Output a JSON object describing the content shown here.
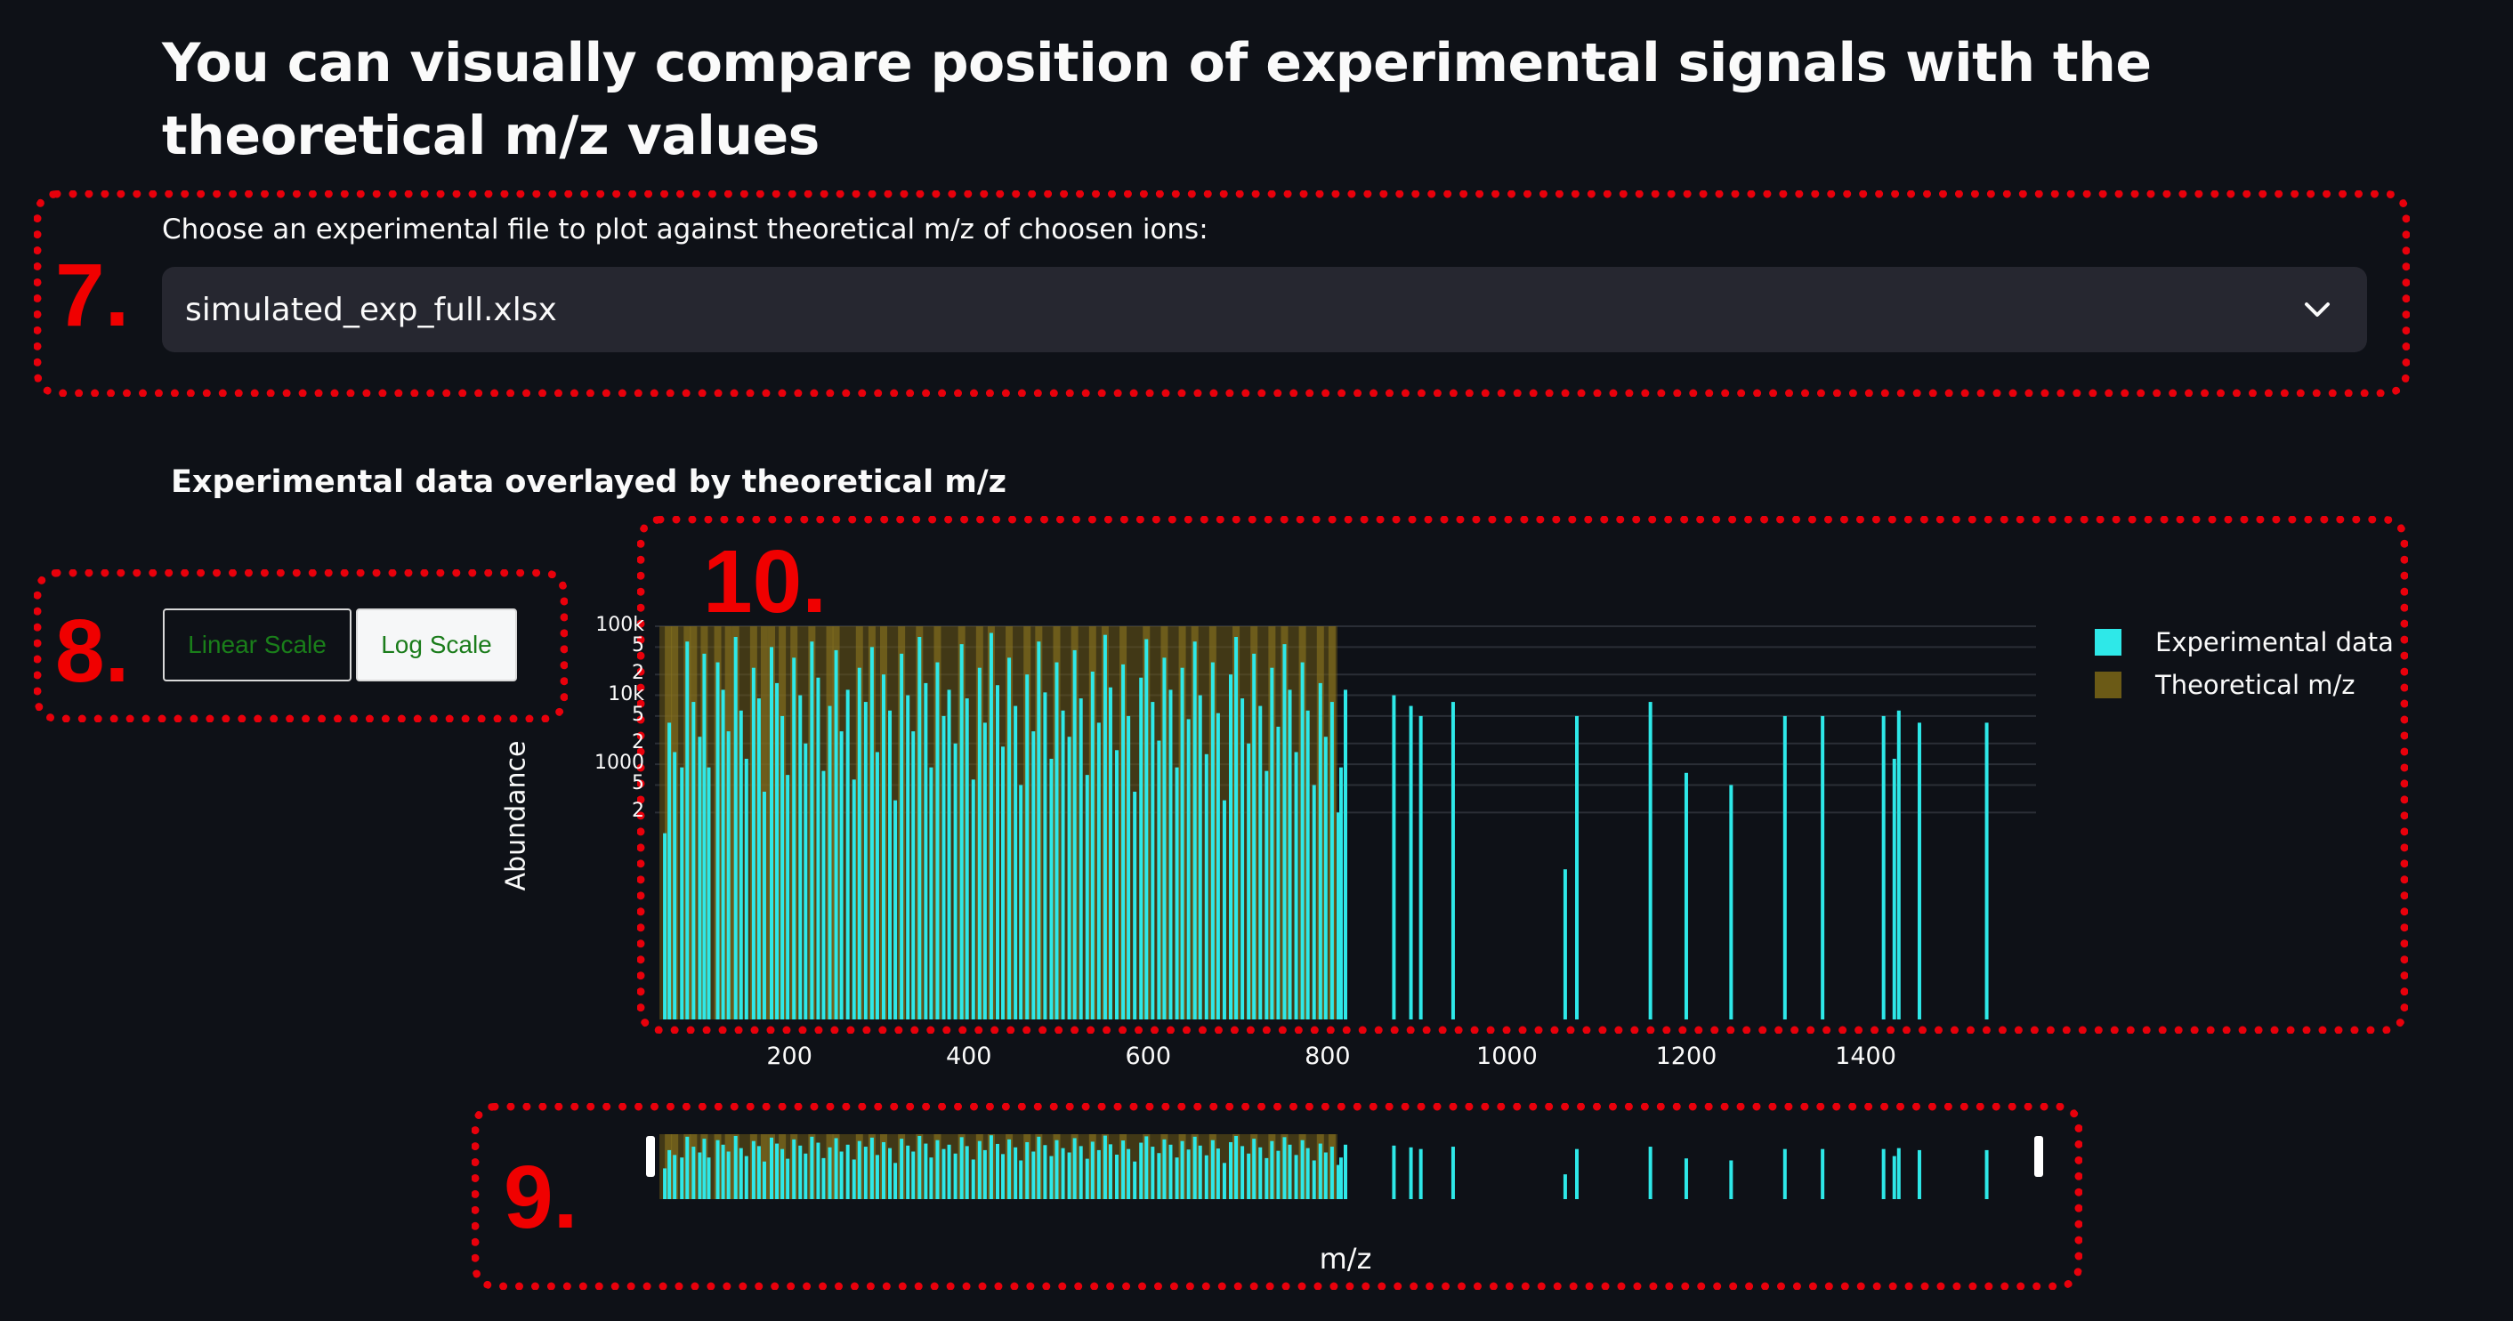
{
  "page": {
    "title": "You can visually compare position of experimental signals with the theoretical m/z values"
  },
  "file_selector": {
    "label": "Choose an experimental file to plot against theoretical m/z of choosen ions:",
    "value": "simulated_exp_full.xlsx"
  },
  "chart": {
    "subtitle": "Experimental data overlayed by theoretical m/z",
    "scale_buttons": {
      "linear": "Linear Scale",
      "log": "Log Scale",
      "active": "log"
    },
    "legend": {
      "experimental": "Experimental data",
      "theoretical": "Theoretical m/z"
    },
    "range_slider_label": "m/z"
  },
  "annotations": {
    "n7": "7.",
    "n8": "8.",
    "n9": "9.",
    "n10": "10."
  },
  "colors": {
    "background": "#0e1117",
    "experimental": "#2ee8e8",
    "theoretical": "#6b5a16",
    "annotation": "#e8000b",
    "select_bg": "#262730"
  },
  "chart_data": {
    "type": "bar",
    "x_range": [
      50,
      1590
    ],
    "y_scale": "log",
    "y_range": [
      0.2,
      100000
    ],
    "xlabel": "m/z",
    "ylabel": "Abundance",
    "x_ticks": [
      "200",
      "400",
      "600",
      "800",
      "1000",
      "1200",
      "1400"
    ],
    "y_ticks": [
      "100k",
      "5",
      "2",
      "10k",
      "5",
      "2",
      "1000",
      "5",
      "2"
    ],
    "grid": true,
    "legend_position": "top-right",
    "series": [
      {
        "name": "Experimental data",
        "x": [
          [
            61,
            100
          ],
          [
            66,
            4000
          ],
          [
            72,
            1500
          ],
          [
            80,
            900
          ],
          [
            86,
            60000
          ],
          [
            93,
            8000
          ],
          [
            100,
            2500
          ],
          [
            105,
            40000
          ],
          [
            110,
            900
          ],
          [
            120,
            30000
          ],
          [
            126,
            12000
          ],
          [
            132,
            3000
          ],
          [
            140,
            70000
          ],
          [
            146,
            6000
          ],
          [
            152,
            1200
          ],
          [
            160,
            25000
          ],
          [
            166,
            9000
          ],
          [
            172,
            400
          ],
          [
            180,
            50000
          ],
          [
            186,
            15000
          ],
          [
            192,
            5000
          ],
          [
            198,
            700
          ],
          [
            205,
            35000
          ],
          [
            212,
            10000
          ],
          [
            218,
            2000
          ],
          [
            225,
            60000
          ],
          [
            232,
            18000
          ],
          [
            238,
            800
          ],
          [
            245,
            7000
          ],
          [
            252,
            45000
          ],
          [
            258,
            3000
          ],
          [
            265,
            12000
          ],
          [
            272,
            600
          ],
          [
            278,
            25000
          ],
          [
            285,
            8000
          ],
          [
            292,
            50000
          ],
          [
            298,
            1500
          ],
          [
            305,
            20000
          ],
          [
            312,
            6000
          ],
          [
            318,
            300
          ],
          [
            325,
            40000
          ],
          [
            332,
            10000
          ],
          [
            338,
            3000
          ],
          [
            345,
            70000
          ],
          [
            352,
            15000
          ],
          [
            358,
            900
          ],
          [
            365,
            30000
          ],
          [
            372,
            5000
          ],
          [
            378,
            12000
          ],
          [
            385,
            2000
          ],
          [
            392,
            55000
          ],
          [
            398,
            9000
          ],
          [
            405,
            600
          ],
          [
            412,
            25000
          ],
          [
            418,
            4000
          ],
          [
            425,
            80000
          ],
          [
            432,
            14000
          ],
          [
            438,
            1800
          ],
          [
            445,
            35000
          ],
          [
            452,
            7000
          ],
          [
            458,
            500
          ],
          [
            465,
            20000
          ],
          [
            472,
            3000
          ],
          [
            478,
            60000
          ],
          [
            485,
            11000
          ],
          [
            492,
            1200
          ],
          [
            498,
            30000
          ],
          [
            505,
            6000
          ],
          [
            512,
            2500
          ],
          [
            518,
            45000
          ],
          [
            525,
            9000
          ],
          [
            532,
            700
          ],
          [
            538,
            22000
          ],
          [
            545,
            4000
          ],
          [
            552,
            75000
          ],
          [
            558,
            13000
          ],
          [
            565,
            1600
          ],
          [
            572,
            28000
          ],
          [
            578,
            5000
          ],
          [
            585,
            400
          ],
          [
            592,
            18000
          ],
          [
            598,
            65000
          ],
          [
            605,
            8000
          ],
          [
            612,
            2200
          ],
          [
            618,
            35000
          ],
          [
            625,
            12000
          ],
          [
            632,
            900
          ],
          [
            638,
            25000
          ],
          [
            645,
            4500
          ],
          [
            652,
            60000
          ],
          [
            658,
            10000
          ],
          [
            665,
            1400
          ],
          [
            672,
            30000
          ],
          [
            678,
            5500
          ],
          [
            685,
            300
          ],
          [
            692,
            20000
          ],
          [
            698,
            70000
          ],
          [
            705,
            9000
          ],
          [
            712,
            2000
          ],
          [
            718,
            40000
          ],
          [
            725,
            7000
          ],
          [
            732,
            800
          ],
          [
            738,
            25000
          ],
          [
            745,
            3500
          ],
          [
            752,
            55000
          ],
          [
            758,
            12000
          ],
          [
            765,
            1500
          ],
          [
            772,
            30000
          ],
          [
            778,
            6000
          ],
          [
            785,
            500
          ],
          [
            792,
            15000
          ],
          [
            798,
            2500
          ],
          [
            805,
            8000
          ],
          [
            812,
            200
          ],
          [
            815,
            900
          ],
          [
            820,
            12000
          ],
          [
            874,
            10000
          ],
          [
            893,
            7000
          ],
          [
            904,
            5000
          ],
          [
            940,
            8000
          ],
          [
            1065,
            30
          ],
          [
            1078,
            5000
          ],
          [
            1160,
            8000
          ],
          [
            1200,
            750
          ],
          [
            1250,
            500
          ],
          [
            1310,
            5000
          ],
          [
            1352,
            5000
          ],
          [
            1420,
            5000
          ],
          [
            1432,
            1200
          ],
          [
            1437,
            6000
          ],
          [
            1460,
            4000
          ],
          [
            1535,
            4000
          ]
        ]
      },
      {
        "name": "Theoretical m/z",
        "x": [
          65,
          72,
          86,
          93,
          105,
          120,
          132,
          140,
          160,
          172,
          180,
          192,
          205,
          225,
          245,
          252,
          278,
          292,
          305,
          325,
          345,
          365,
          392,
          412,
          425,
          445,
          465,
          478,
          498,
          518,
          538,
          552,
          572,
          598,
          618,
          638,
          652,
          672,
          698,
          718,
          738,
          752,
          772,
          792,
          805
        ]
      }
    ]
  }
}
